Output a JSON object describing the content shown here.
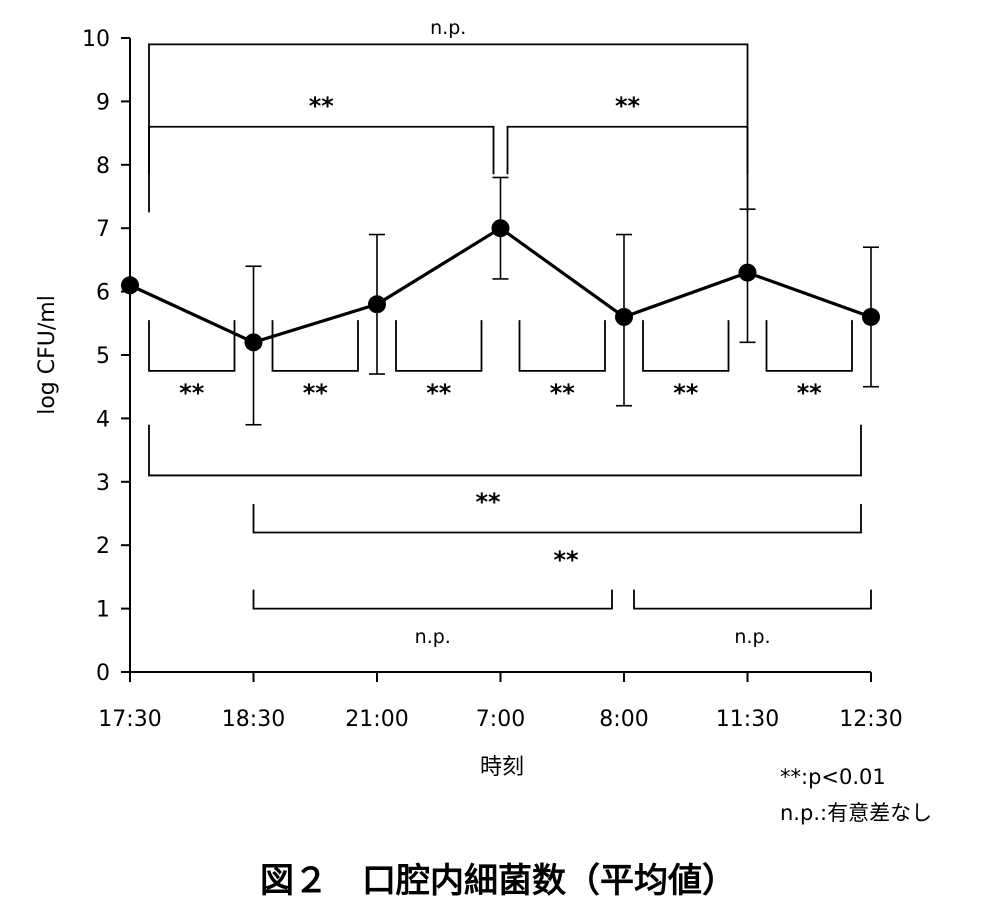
{
  "chart_data": {
    "type": "line",
    "categories": [
      "17:30",
      "18:30",
      "21:00",
      "7:00",
      "8:00",
      "11:30",
      "12:30"
    ],
    "series": [
      {
        "values": [
          6.1,
          5.2,
          5.8,
          7.0,
          5.6,
          6.3,
          5.6
        ],
        "error_upper": [
          6.1,
          6.4,
          6.9,
          7.8,
          6.9,
          7.3,
          6.7
        ],
        "error_lower": [
          6.1,
          3.9,
          4.7,
          6.2,
          4.2,
          5.2,
          4.5
        ]
      }
    ],
    "ylabel": "log CFU/ml",
    "xlabel": "時刻",
    "ylim": [
      0,
      10
    ],
    "yticks": [
      "0",
      "1",
      "2",
      "3",
      "4",
      "5",
      "6",
      "7",
      "8",
      "9",
      "10"
    ],
    "grid": false,
    "annotations": [
      {
        "from": "17:30",
        "to": "11:30",
        "label": "n.p.",
        "position": "top"
      },
      {
        "from": "17:30",
        "to": "7:00",
        "label": "**",
        "position": "upper"
      },
      {
        "from": "7:00",
        "to": "11:30",
        "label": "**",
        "position": "upper"
      },
      {
        "from": "17:30",
        "to": "18:30",
        "label": "**",
        "position": "below-line"
      },
      {
        "from": "18:30",
        "to": "21:00",
        "label": "**",
        "position": "below-line"
      },
      {
        "from": "21:00",
        "to": "7:00",
        "label": "**",
        "position": "below-line"
      },
      {
        "from": "7:00",
        "to": "8:00",
        "label": "**",
        "position": "below-line"
      },
      {
        "from": "8:00",
        "to": "11:30",
        "label": "**",
        "position": "below-line"
      },
      {
        "from": "11:30",
        "to": "12:30",
        "label": "**",
        "position": "below-line"
      },
      {
        "from": "17:30",
        "to": "12:30",
        "label": "",
        "position": "lower"
      },
      {
        "from": "18:30",
        "to": "12:30",
        "label": "**",
        "position": "lower"
      },
      {
        "from": "18:30",
        "to": "8:00",
        "label": "n.p.",
        "position": "bottom"
      },
      {
        "from": "8:00",
        "to": "12:30",
        "label": "n.p.",
        "position": "bottom"
      }
    ],
    "extra_significance_label": "**",
    "legend_lines": [
      "**:p<0.01",
      "n.p.:有意差なし"
    ],
    "caption": "図２　口腔内細菌数（平均値）"
  }
}
